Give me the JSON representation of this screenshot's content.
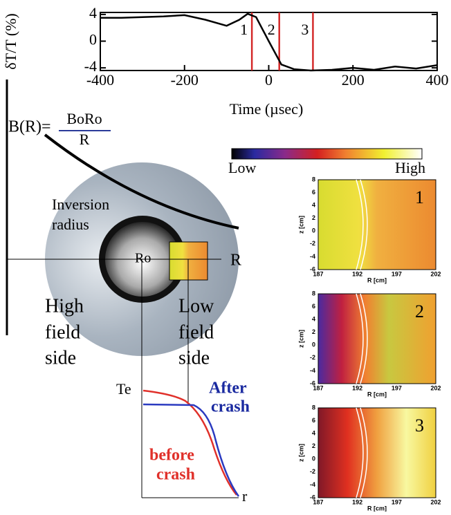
{
  "chart_data": {
    "type": "line",
    "x_label": "Time (µsec)",
    "y_label": "δT/T (%)",
    "x": [
      -400,
      -350,
      -300,
      -250,
      -200,
      -150,
      -100,
      -70,
      -50,
      -30,
      0,
      30,
      60,
      100,
      150,
      200,
      250,
      300,
      350,
      400
    ],
    "series": [
      {
        "color": "#000000",
        "values": [
          3.5,
          3.5,
          3.6,
          3.7,
          3.9,
          3.2,
          2.3,
          3.2,
          4.1,
          3.6,
          0,
          -3.5,
          -4.2,
          -4.4,
          -4.3,
          -4.0,
          -4.3,
          -3.8,
          -4.1,
          -3.6
        ]
      }
    ],
    "xlim": [
      -400,
      400
    ],
    "ylim": [
      -4.4,
      4.3
    ],
    "xticks": [
      -400,
      -200,
      0,
      200,
      400
    ],
    "yticks": [
      4,
      0,
      -4
    ],
    "markers": [
      {
        "x": -40,
        "label": "1"
      },
      {
        "x": 25,
        "label": "2"
      },
      {
        "x": 105,
        "label": "3"
      }
    ],
    "marker_color": "#d42a2a"
  },
  "diagram": {
    "formula": {
      "left": "B(R)=",
      "numerator": "BoRo",
      "denominator": "R"
    },
    "colorbar": {
      "low": "Low",
      "high": "High"
    },
    "inversion": [
      "Inversion",
      "radius"
    ],
    "center": "Ro",
    "axis_r": "R",
    "high_side": [
      "High",
      "field",
      "side"
    ],
    "low_side": [
      "Low",
      "field",
      "side"
    ],
    "profile": {
      "y_label": "Te",
      "x_label": "r",
      "after": [
        "After",
        "crash"
      ],
      "before": [
        "before",
        "crash"
      ]
    },
    "panels": {
      "labels": [
        "1",
        "2",
        "3"
      ],
      "y_label": "z [cm]",
      "x_label": "R [cm]",
      "yticks": [
        8,
        6,
        4,
        2,
        0,
        -2,
        -4,
        -6
      ],
      "xticks": [
        187,
        192,
        197,
        202
      ]
    }
  }
}
